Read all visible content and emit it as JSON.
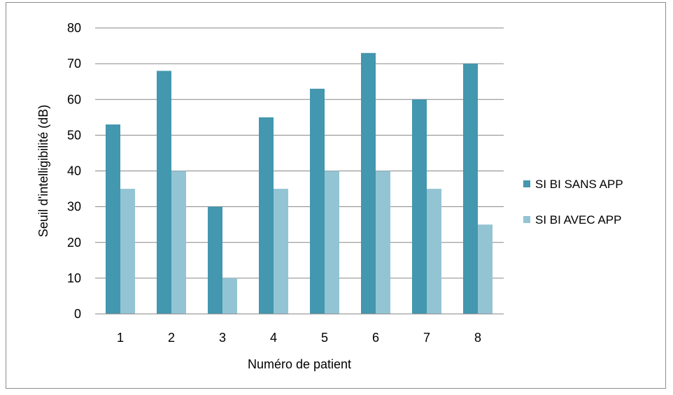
{
  "chart_data": {
    "type": "bar",
    "title": "",
    "xlabel": "Numéro de patient",
    "ylabel": "Seuil d'intelligibilité (dB)",
    "categories": [
      "1",
      "2",
      "3",
      "4",
      "5",
      "6",
      "7",
      "8"
    ],
    "series": [
      {
        "name": "SI BI SANS APP",
        "color": "#4397ae",
        "values": [
          53,
          68,
          30,
          55,
          63,
          73,
          60,
          70
        ]
      },
      {
        "name": "SI BI AVEC APP",
        "color": "#93c4d4",
        "values": [
          35,
          40,
          10,
          35,
          40,
          40,
          35,
          25
        ]
      }
    ],
    "ylim": [
      0,
      80
    ],
    "yticks": [
      "0",
      "10",
      "20",
      "30",
      "40",
      "50",
      "60",
      "70",
      "80"
    ],
    "grid": true,
    "legend_position": "right"
  }
}
